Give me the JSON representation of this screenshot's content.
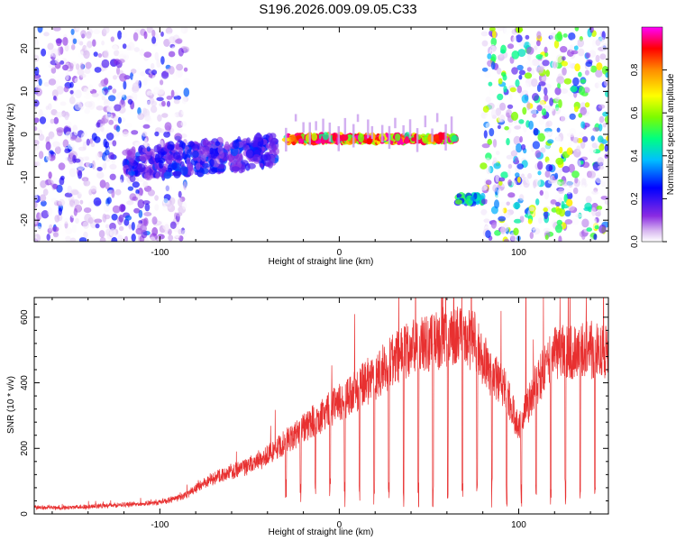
{
  "title": "S196.2026.009.09.05.C33",
  "chart_data": [
    {
      "type": "heatmap",
      "xlabel": "Height of straight line (km)",
      "ylabel": "Frequency (Hz)",
      "xlim": [
        -170,
        150
      ],
      "ylim": [
        -25,
        25
      ],
      "xticks": [
        -100,
        0,
        100
      ],
      "yticks": [
        -20,
        -10,
        0,
        10,
        20
      ],
      "colorbar": {
        "label": "Normalized spectral amplitude",
        "range": [
          0,
          1
        ],
        "ticks": [
          0.0,
          0.2,
          0.4,
          0.6,
          0.8
        ],
        "colors": [
          "#ffffff",
          "#d8b8f0",
          "#8a2be2",
          "#0000ff",
          "#00bfff",
          "#00ff80",
          "#7cfc00",
          "#ffff00",
          "#ff8c00",
          "#ff0000",
          "#ff00ff"
        ]
      },
      "features": [
        {
          "name": "noise-left",
          "x_range": [
            -170,
            -85
          ],
          "frequency": "broadband",
          "amplitude": 0.15
        },
        {
          "name": "diffuse-signal",
          "x_range": [
            -120,
            -35
          ],
          "frequency": -4,
          "amplitude": 0.3
        },
        {
          "name": "narrow-signal",
          "x_range": [
            -30,
            65
          ],
          "frequency": -1,
          "amplitude": 0.85
        },
        {
          "name": "shifted-signal",
          "x_range": [
            66,
            80
          ],
          "frequency": -15,
          "amplitude": 0.5
        },
        {
          "name": "noise-right",
          "x_range": [
            80,
            150
          ],
          "frequency": "broadband",
          "amplitude": 0.3
        }
      ]
    },
    {
      "type": "line",
      "xlabel": "Height of straight line (km)",
      "ylabel": "SNR (10 * v/v)",
      "xlim": [
        -170,
        150
      ],
      "ylim": [
        0,
        660
      ],
      "xticks": [
        -100,
        0,
        100
      ],
      "yticks": [
        0,
        200,
        400,
        600
      ],
      "series": [
        {
          "name": "SNR",
          "color": "#e83030",
          "x": [
            -170,
            -150,
            -130,
            -110,
            -95,
            -85,
            -80,
            -70,
            -60,
            -50,
            -40,
            -30,
            -20,
            -10,
            0,
            10,
            20,
            30,
            40,
            50,
            60,
            70,
            75,
            80,
            85,
            90,
            95,
            100,
            105,
            110,
            115,
            120,
            130,
            140,
            150
          ],
          "y": [
            20,
            20,
            25,
            30,
            40,
            60,
            80,
            110,
            130,
            150,
            180,
            220,
            260,
            300,
            340,
            380,
            420,
            470,
            510,
            520,
            540,
            540,
            530,
            470,
            430,
            400,
            350,
            260,
            330,
            400,
            440,
            490,
            490,
            500,
            490
          ]
        }
      ],
      "annotations": {
        "spike": {
          "x": 104,
          "y": 660
        }
      }
    }
  ]
}
